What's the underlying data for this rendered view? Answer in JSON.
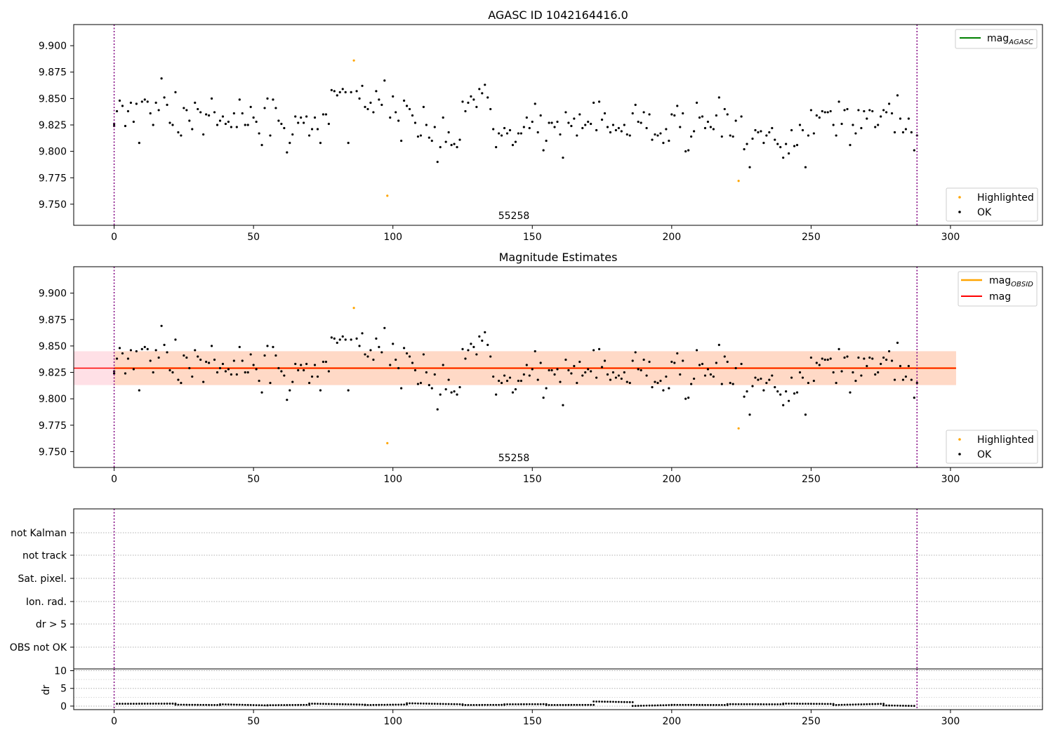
{
  "figure": {
    "background": "#ffffff"
  },
  "chart_data": [
    {
      "type": "scatter",
      "title": "AGASC ID 1042164416.0",
      "xlim": [
        -14.5,
        333
      ],
      "ylim": [
        9.73,
        9.92
      ],
      "xticks": [
        0,
        50,
        100,
        150,
        200,
        250,
        300
      ],
      "yticks": [
        9.75,
        9.775,
        9.8,
        9.825,
        9.85,
        9.875,
        9.9
      ],
      "ytick_labels": [
        "9.750",
        "9.775",
        "9.800",
        "9.825",
        "9.850",
        "9.875",
        "9.900"
      ],
      "grid": false,
      "vlines": [
        0,
        288
      ],
      "vline_color": "#800080",
      "annotation": "55258",
      "series": [
        {
          "name": "OK",
          "color": "#000000",
          "values": "ok_series"
        },
        {
          "name": "Highlighted",
          "color": "#ffa500",
          "values": "highlighted_series"
        }
      ],
      "highlighted": [
        [
          86,
          9.886
        ],
        [
          98,
          9.758
        ],
        [
          224,
          9.772
        ]
      ],
      "legend_upper": [
        {
          "label_base": "mag",
          "label_sub": "AGASC",
          "color": "#008000"
        }
      ],
      "legend_upper_placement": "upper right",
      "legend_lower_placement": "lower right"
    },
    {
      "type": "scatter",
      "title": "Magnitude Estimates",
      "xlim": [
        -14.5,
        333
      ],
      "ylim": [
        9.735,
        9.925
      ],
      "xticks": [
        0,
        50,
        100,
        150,
        200,
        250,
        300
      ],
      "yticks": [
        9.75,
        9.775,
        9.8,
        9.825,
        9.85,
        9.875,
        9.9
      ],
      "ytick_labels": [
        "9.750",
        "9.775",
        "9.800",
        "9.825",
        "9.850",
        "9.875",
        "9.900"
      ],
      "grid": false,
      "vlines": [
        0,
        288
      ],
      "annotation": "55258",
      "mag": {
        "value": 9.829,
        "band": [
          9.813,
          9.845
        ],
        "xrange": [
          -14.5,
          302
        ],
        "line_color": "#ff0000",
        "band_color": "#ffe0e6"
      },
      "mag_obsid": {
        "value": 9.829,
        "band": [
          9.813,
          9.845
        ],
        "xrange": [
          0,
          302
        ],
        "line_color": "#ffa500",
        "band_color": "#ffd9c6"
      },
      "legend_upper": [
        {
          "label_base": "mag",
          "label_sub": "OBSID",
          "color": "#ffa500"
        },
        {
          "label_base": "mag",
          "label_sub": "",
          "color": "#ff0000"
        }
      ],
      "legend_upper_placement": "upper right",
      "legend_lower_placement": "lower right"
    },
    {
      "type": "scatter",
      "title": "",
      "xlim": [
        -14.5,
        333
      ],
      "categories": [
        "OBS not OK",
        "dr > 5",
        "Ion. rad.",
        "Sat. pixel.",
        "not track",
        "not Kalman"
      ],
      "grid": true,
      "vlines": [
        0,
        288
      ]
    },
    {
      "type": "line",
      "ylabel": "dr",
      "xlim": [
        -14.5,
        333
      ],
      "ylim": [
        -1,
        10.5
      ],
      "yticks": [
        0,
        5,
        10
      ],
      "xticks": [
        0,
        50,
        100,
        150,
        200,
        250,
        300
      ],
      "vlines": [
        0,
        288
      ],
      "dr_segments": [
        {
          "x": [
            1,
            22
          ],
          "y": [
            0.65,
            0.7
          ]
        },
        {
          "x": [
            22,
            38
          ],
          "y": [
            0.4,
            0.3
          ]
        },
        {
          "x": [
            38,
            55
          ],
          "y": [
            0.5,
            0.2
          ]
        },
        {
          "x": [
            55,
            70
          ],
          "y": [
            0.25,
            0.35
          ]
        },
        {
          "x": [
            70,
            90
          ],
          "y": [
            0.7,
            0.4
          ]
        },
        {
          "x": [
            90,
            105
          ],
          "y": [
            0.3,
            0.45
          ]
        },
        {
          "x": [
            105,
            125
          ],
          "y": [
            0.8,
            0.5
          ]
        },
        {
          "x": [
            125,
            140
          ],
          "y": [
            0.3,
            0.35
          ]
        },
        {
          "x": [
            140,
            155
          ],
          "y": [
            0.5,
            0.55
          ]
        },
        {
          "x": [
            155,
            172
          ],
          "y": [
            0.3,
            0.35
          ]
        },
        {
          "x": [
            172,
            186
          ],
          "y": [
            1.3,
            1.1
          ]
        },
        {
          "x": [
            186,
            200
          ],
          "y": [
            0.05,
            0.3
          ]
        },
        {
          "x": [
            200,
            220
          ],
          "y": [
            0.35,
            0.3
          ]
        },
        {
          "x": [
            220,
            240
          ],
          "y": [
            0.55,
            0.5
          ]
        },
        {
          "x": [
            240,
            258
          ],
          "y": [
            0.7,
            0.6
          ]
        },
        {
          "x": [
            258,
            276
          ],
          "y": [
            0.3,
            0.65
          ]
        },
        {
          "x": [
            276,
            287
          ],
          "y": [
            0.2,
            0.05
          ]
        }
      ]
    }
  ],
  "ok_series": [
    [
      0,
      9.824
    ],
    [
      0,
      9.826
    ],
    [
      1,
      9.838
    ],
    [
      2,
      9.848
    ],
    [
      3,
      9.843
    ],
    [
      4,
      9.824
    ],
    [
      5,
      9.838
    ],
    [
      6,
      9.846
    ],
    [
      7,
      9.828
    ],
    [
      8,
      9.845
    ],
    [
      9,
      9.808
    ],
    [
      10,
      9.847
    ],
    [
      11,
      9.849
    ],
    [
      12,
      9.847
    ],
    [
      13,
      9.836
    ],
    [
      14,
      9.825
    ],
    [
      15,
      9.846
    ],
    [
      16,
      9.839
    ],
    [
      17,
      9.869
    ],
    [
      18,
      9.851
    ],
    [
      19,
      9.844
    ],
    [
      20,
      9.827
    ],
    [
      21,
      9.825
    ],
    [
      22,
      9.856
    ],
    [
      23,
      9.818
    ],
    [
      24,
      9.815
    ],
    [
      25,
      9.841
    ],
    [
      26,
      9.839
    ],
    [
      27,
      9.829
    ],
    [
      28,
      9.821
    ],
    [
      29,
      9.846
    ],
    [
      30,
      9.84
    ],
    [
      31,
      9.837
    ],
    [
      32,
      9.816
    ],
    [
      33,
      9.835
    ],
    [
      34,
      9.834
    ],
    [
      35,
      9.85
    ],
    [
      36,
      9.837
    ],
    [
      37,
      9.825
    ],
    [
      38,
      9.829
    ],
    [
      39,
      9.833
    ],
    [
      40,
      9.826
    ],
    [
      41,
      9.828
    ],
    [
      42,
      9.823
    ],
    [
      43,
      9.836
    ],
    [
      44,
      9.823
    ],
    [
      45,
      9.849
    ],
    [
      46,
      9.836
    ],
    [
      47,
      9.825
    ],
    [
      48,
      9.825
    ],
    [
      49,
      9.842
    ],
    [
      50,
      9.832
    ],
    [
      51,
      9.828
    ],
    [
      52,
      9.817
    ],
    [
      53,
      9.806
    ],
    [
      54,
      9.841
    ],
    [
      55,
      9.85
    ],
    [
      56,
      9.815
    ],
    [
      57,
      9.849
    ],
    [
      58,
      9.841
    ],
    [
      59,
      9.829
    ],
    [
      60,
      9.826
    ],
    [
      61,
      9.822
    ],
    [
      62,
      9.799
    ],
    [
      63,
      9.808
    ],
    [
      64,
      9.816
    ],
    [
      65,
      9.833
    ],
    [
      66,
      9.827
    ],
    [
      67,
      9.832
    ],
    [
      68,
      9.827
    ],
    [
      69,
      9.833
    ],
    [
      70,
      9.815
    ],
    [
      71,
      9.821
    ],
    [
      72,
      9.832
    ],
    [
      73,
      9.821
    ],
    [
      74,
      9.808
    ],
    [
      75,
      9.835
    ],
    [
      76,
      9.835
    ],
    [
      77,
      9.826
    ],
    [
      78,
      9.858
    ],
    [
      79,
      9.857
    ],
    [
      80,
      9.853
    ],
    [
      81,
      9.856
    ],
    [
      82,
      9.859
    ],
    [
      83,
      9.856
    ],
    [
      84,
      9.808
    ],
    [
      85,
      9.856
    ],
    [
      87,
      9.857
    ],
    [
      88,
      9.85
    ],
    [
      89,
      9.862
    ],
    [
      90,
      9.842
    ],
    [
      91,
      9.84
    ],
    [
      92,
      9.846
    ],
    [
      93,
      9.837
    ],
    [
      94,
      9.857
    ],
    [
      95,
      9.849
    ],
    [
      96,
      9.844
    ],
    [
      97,
      9.867
    ],
    [
      99,
      9.832
    ],
    [
      100,
      9.852
    ],
    [
      101,
      9.837
    ],
    [
      102,
      9.829
    ],
    [
      103,
      9.81
    ],
    [
      104,
      9.848
    ],
    [
      105,
      9.843
    ],
    [
      106,
      9.84
    ],
    [
      107,
      9.834
    ],
    [
      108,
      9.827
    ],
    [
      109,
      9.814
    ],
    [
      110,
      9.815
    ],
    [
      111,
      9.842
    ],
    [
      112,
      9.825
    ],
    [
      113,
      9.813
    ],
    [
      114,
      9.81
    ],
    [
      115,
      9.823
    ],
    [
      116,
      9.79
    ],
    [
      117,
      9.804
    ],
    [
      118,
      9.832
    ],
    [
      119,
      9.809
    ],
    [
      120,
      9.818
    ],
    [
      121,
      9.806
    ],
    [
      122,
      9.807
    ],
    [
      123,
      9.804
    ],
    [
      124,
      9.811
    ],
    [
      125,
      9.847
    ],
    [
      126,
      9.838
    ],
    [
      127,
      9.846
    ],
    [
      128,
      9.852
    ],
    [
      129,
      9.849
    ],
    [
      130,
      9.842
    ],
    [
      131,
      9.859
    ],
    [
      132,
      9.855
    ],
    [
      133,
      9.863
    ],
    [
      134,
      9.851
    ],
    [
      135,
      9.84
    ],
    [
      136,
      9.821
    ],
    [
      137,
      9.804
    ],
    [
      138,
      9.817
    ],
    [
      139,
      9.815
    ],
    [
      140,
      9.822
    ],
    [
      141,
      9.817
    ],
    [
      142,
      9.82
    ],
    [
      143,
      9.806
    ],
    [
      144,
      9.809
    ],
    [
      145,
      9.817
    ],
    [
      146,
      9.817
    ],
    [
      147,
      9.823
    ],
    [
      148,
      9.832
    ],
    [
      149,
      9.822
    ],
    [
      150,
      9.828
    ],
    [
      151,
      9.845
    ],
    [
      152,
      9.818
    ],
    [
      153,
      9.834
    ],
    [
      154,
      9.801
    ],
    [
      155,
      9.81
    ],
    [
      156,
      9.827
    ],
    [
      157,
      9.827
    ],
    [
      158,
      9.823
    ],
    [
      159,
      9.828
    ],
    [
      160,
      9.816
    ],
    [
      161,
      9.794
    ],
    [
      162,
      9.837
    ],
    [
      163,
      9.827
    ],
    [
      164,
      9.824
    ],
    [
      165,
      9.831
    ],
    [
      166,
      9.815
    ],
    [
      167,
      9.835
    ],
    [
      168,
      9.822
    ],
    [
      169,
      9.825
    ],
    [
      170,
      9.828
    ],
    [
      171,
      9.826
    ],
    [
      172,
      9.846
    ],
    [
      173,
      9.82
    ],
    [
      174,
      9.847
    ],
    [
      175,
      9.83
    ],
    [
      176,
      9.836
    ],
    [
      177,
      9.823
    ],
    [
      178,
      9.818
    ],
    [
      179,
      9.825
    ],
    [
      180,
      9.82
    ],
    [
      181,
      9.822
    ],
    [
      182,
      9.819
    ],
    [
      183,
      9.825
    ],
    [
      184,
      9.816
    ],
    [
      185,
      9.815
    ],
    [
      186,
      9.836
    ],
    [
      187,
      9.844
    ],
    [
      188,
      9.828
    ],
    [
      189,
      9.827
    ],
    [
      190,
      9.837
    ],
    [
      191,
      9.822
    ],
    [
      192,
      9.835
    ],
    [
      193,
      9.811
    ],
    [
      194,
      9.816
    ],
    [
      195,
      9.815
    ],
    [
      196,
      9.817
    ],
    [
      197,
      9.808
    ],
    [
      198,
      9.821
    ],
    [
      199,
      9.81
    ],
    [
      200,
      9.835
    ],
    [
      201,
      9.834
    ],
    [
      202,
      9.843
    ],
    [
      203,
      9.823
    ],
    [
      204,
      9.836
    ],
    [
      205,
      9.8
    ],
    [
      206,
      9.801
    ],
    [
      207,
      9.814
    ],
    [
      208,
      9.819
    ],
    [
      209,
      9.846
    ],
    [
      210,
      9.832
    ],
    [
      211,
      9.833
    ],
    [
      212,
      9.822
    ],
    [
      213,
      9.828
    ],
    [
      214,
      9.823
    ],
    [
      215,
      9.821
    ],
    [
      216,
      9.834
    ],
    [
      217,
      9.851
    ],
    [
      218,
      9.814
    ],
    [
      219,
      9.84
    ],
    [
      220,
      9.835
    ],
    [
      221,
      9.815
    ],
    [
      222,
      9.814
    ],
    [
      223,
      9.829
    ],
    [
      225,
      9.833
    ],
    [
      226,
      9.802
    ],
    [
      227,
      9.807
    ],
    [
      228,
      9.785
    ],
    [
      229,
      9.812
    ],
    [
      230,
      9.82
    ],
    [
      231,
      9.818
    ],
    [
      232,
      9.819
    ],
    [
      233,
      9.808
    ],
    [
      234,
      9.815
    ],
    [
      235,
      9.818
    ],
    [
      236,
      9.822
    ],
    [
      237,
      9.811
    ],
    [
      238,
      9.807
    ],
    [
      239,
      9.804
    ],
    [
      240,
      9.794
    ],
    [
      241,
      9.807
    ],
    [
      242,
      9.798
    ],
    [
      243,
      9.82
    ],
    [
      244,
      9.805
    ],
    [
      245,
      9.806
    ],
    [
      246,
      9.825
    ],
    [
      247,
      9.82
    ],
    [
      248,
      9.785
    ],
    [
      249,
      9.815
    ],
    [
      250,
      9.839
    ],
    [
      251,
      9.817
    ],
    [
      252,
      9.834
    ],
    [
      253,
      9.832
    ],
    [
      254,
      9.838
    ],
    [
      255,
      9.837
    ],
    [
      256,
      9.837
    ],
    [
      257,
      9.838
    ],
    [
      258,
      9.825
    ],
    [
      259,
      9.815
    ],
    [
      260,
      9.847
    ],
    [
      261,
      9.826
    ],
    [
      262,
      9.839
    ],
    [
      263,
      9.84
    ],
    [
      264,
      9.806
    ],
    [
      265,
      9.825
    ],
    [
      266,
      9.817
    ],
    [
      267,
      9.839
    ],
    [
      268,
      9.822
    ],
    [
      269,
      9.838
    ],
    [
      270,
      9.831
    ],
    [
      271,
      9.839
    ],
    [
      272,
      9.838
    ],
    [
      273,
      9.823
    ],
    [
      274,
      9.825
    ],
    [
      275,
      9.833
    ],
    [
      276,
      9.839
    ],
    [
      277,
      9.837
    ],
    [
      278,
      9.845
    ],
    [
      279,
      9.836
    ],
    [
      280,
      9.818
    ],
    [
      281,
      9.853
    ],
    [
      282,
      9.831
    ],
    [
      283,
      9.818
    ],
    [
      284,
      9.821
    ],
    [
      285,
      9.831
    ],
    [
      286,
      9.818
    ],
    [
      287,
      9.801
    ],
    [
      288,
      9.815
    ]
  ]
}
